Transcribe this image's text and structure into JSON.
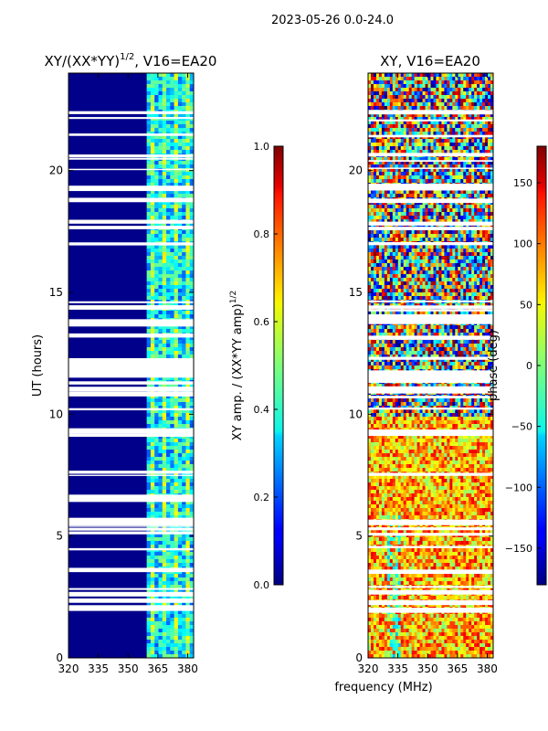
{
  "suptitle": "2023-05-26 0.0-24.0",
  "common_xlabel": "frequency (MHz)",
  "chart_data": [
    {
      "type": "heatmap",
      "title_main": "XY/(XX*YY)",
      "title_sup": "1/2",
      "title_tail": ", V16=EA20",
      "xlabel": "frequency (MHz)",
      "ylabel": "UT (hours)",
      "xlim": [
        320,
        383
      ],
      "ylim": [
        0,
        24
      ],
      "xticks": [
        320,
        335,
        350,
        365,
        380
      ],
      "yticks": [
        0,
        5,
        10,
        15,
        20
      ],
      "colorbar": {
        "label_main": "XY amp. / (XX*YY amp)",
        "label_sup": "1/2",
        "range": [
          0.0,
          1.0
        ],
        "ticks": [
          "0.0",
          "0.2",
          "0.4",
          "0.6",
          "0.8",
          "1.0"
        ],
        "colormap": "jet"
      },
      "description_values": {
        "low_band_level": 0.05,
        "high_band_start_mhz": 360,
        "high_band_level": 0.4
      }
    },
    {
      "type": "heatmap",
      "title_main": "XY, V16=EA20",
      "xlabel": "frequency (MHz)",
      "ylabel": "",
      "xlim": [
        320,
        383
      ],
      "ylim": [
        0,
        24
      ],
      "xticks": [
        320,
        335,
        350,
        365,
        380
      ],
      "yticks": [
        0,
        5,
        10,
        15,
        20
      ],
      "colorbar": {
        "label": "phase (deg)",
        "range": [
          -180,
          180
        ],
        "ticks": [
          "−150",
          "−100",
          "−50",
          "0",
          "50",
          "100",
          "150"
        ],
        "tick_values": [
          -150,
          -100,
          -50,
          0,
          50,
          100,
          150
        ],
        "colormap": "jet"
      }
    }
  ]
}
